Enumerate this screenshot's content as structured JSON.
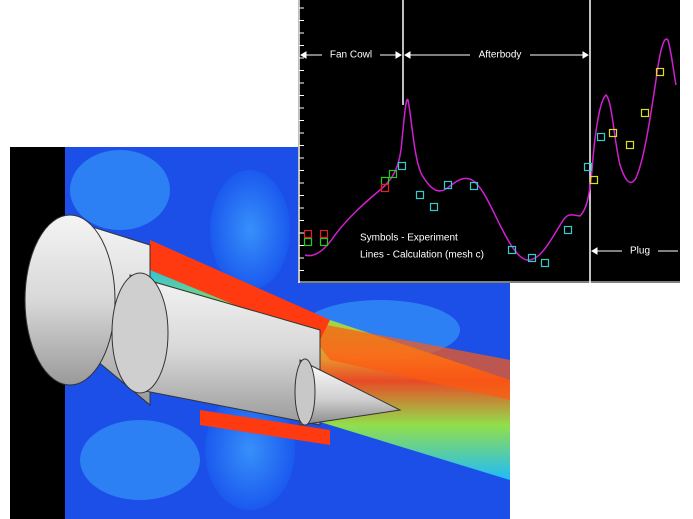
{
  "chart_labels": {
    "fan_cowl": "Fan Cowl",
    "afterbody": "Afterbody",
    "plug": "Plug"
  },
  "legend": {
    "symbols": "Symbols - Experiment",
    "lines": "Lines - Calculation (mesh c)"
  }
}
